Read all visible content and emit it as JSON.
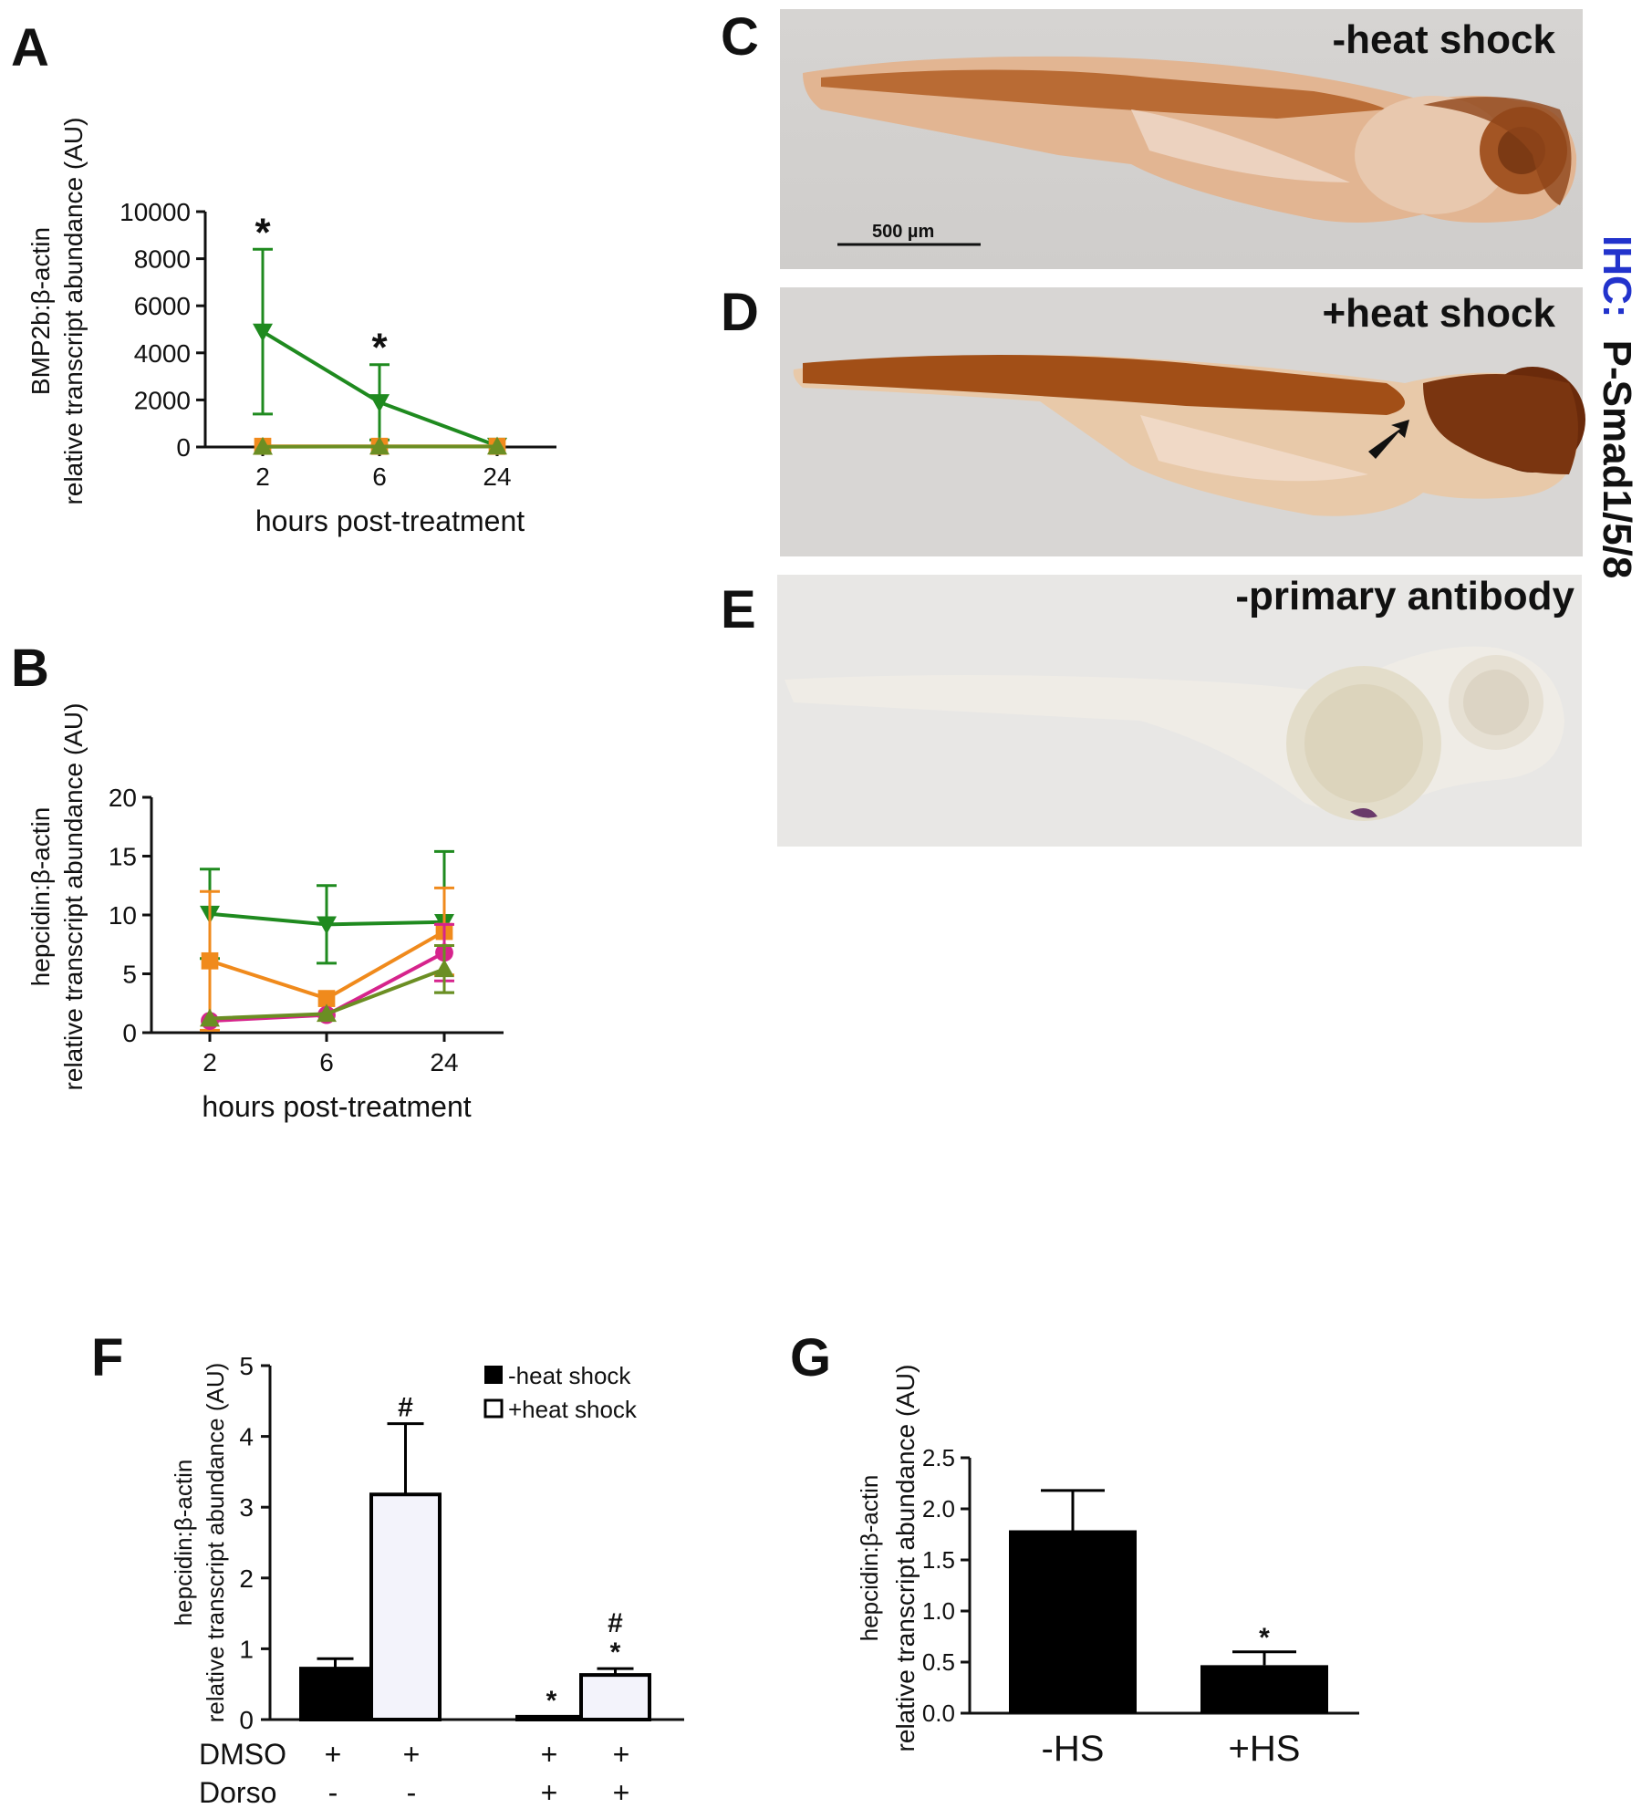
{
  "panels": {
    "A": "A",
    "B": "B",
    "C": "C",
    "D": "D",
    "E": "E",
    "F": "F",
    "G": "G"
  },
  "photos": {
    "C": {
      "label": "-heat shock",
      "scale_bar": "500 µm"
    },
    "D": {
      "label": "+heat shock"
    },
    "E": {
      "label": "-primary antibody"
    },
    "side_label_prefix": "IHC:",
    "side_label_main": "P-Smad1/5/8",
    "side_label_prefix_color": "#2233cc"
  },
  "colors": {
    "green": "#1f8a1f",
    "orange": "#f08a1c",
    "magenta": "#d6248c",
    "olive": "#6b8e23"
  },
  "chart_data": [
    {
      "id": "A",
      "type": "line",
      "x": [
        "2",
        "6",
        "24"
      ],
      "xlabel": "hours post-treatment",
      "ylabel_line1": "BMP2b:β-actin",
      "ylabel_line2": "relative transcript abundance (AU)",
      "ylim": [
        0,
        10000
      ],
      "yticks": [
        "0",
        "2000",
        "4000",
        "6000",
        "8000",
        "10000"
      ],
      "series": [
        {
          "color": "green",
          "marker": "triangle-down",
          "values": [
            4900,
            1900,
            50
          ],
          "err": [
            3500,
            1600,
            0
          ]
        },
        {
          "color": "orange",
          "marker": "square",
          "values": [
            30,
            30,
            30
          ],
          "err": [
            0,
            0,
            0
          ]
        },
        {
          "color": "olive",
          "marker": "triangle-up",
          "values": [
            10,
            20,
            20
          ],
          "err": [
            0,
            0,
            0
          ]
        }
      ],
      "annotations": [
        {
          "x_index": 0,
          "text": "*"
        },
        {
          "x_index": 1,
          "text": "*"
        }
      ]
    },
    {
      "id": "B",
      "type": "line",
      "x": [
        "2",
        "6",
        "24"
      ],
      "xlabel": "hours post-treatment",
      "ylabel_line1": "hepcidin:β-actin",
      "ylabel_line2": "relative transcript abundance (AU)",
      "ylim": [
        0,
        20
      ],
      "yticks": [
        "0",
        "5",
        "10",
        "15",
        "20"
      ],
      "series": [
        {
          "color": "green",
          "marker": "triangle-down",
          "values": [
            10.1,
            9.2,
            9.4
          ],
          "err": [
            3.8,
            3.3,
            6.0
          ]
        },
        {
          "color": "orange",
          "marker": "square",
          "values": [
            6.1,
            2.9,
            8.6
          ],
          "err": [
            5.9,
            0,
            3.7
          ]
        },
        {
          "color": "magenta",
          "marker": "circle",
          "values": [
            1.0,
            1.5,
            6.8
          ],
          "err": [
            0,
            0,
            2.4
          ]
        },
        {
          "color": "olive",
          "marker": "triangle-up",
          "values": [
            1.2,
            1.6,
            5.4
          ],
          "err": [
            0,
            0,
            2.0
          ]
        }
      ]
    },
    {
      "id": "F",
      "type": "bar",
      "ylabel_line1": "hepcidin:β-actin",
      "ylabel_line2": "relative transcript abundance (AU)",
      "ylim": [
        0,
        5
      ],
      "yticks": [
        "0",
        "1",
        "2",
        "3",
        "4",
        "5"
      ],
      "legend": [
        "-heat shock",
        "+heat shock"
      ],
      "bars": [
        {
          "value": 0.72,
          "err": 0.14,
          "fill": "solid",
          "label": ""
        },
        {
          "value": 3.18,
          "err": 1.0,
          "fill": "open",
          "label": "#"
        },
        {
          "value": 0.04,
          "err": 0.0,
          "fill": "solid",
          "label": "*"
        },
        {
          "value": 0.63,
          "err": 0.09,
          "fill": "open",
          "label": "*",
          "label2": "#"
        }
      ],
      "row_labels": [
        "DMSO",
        "Dorso"
      ],
      "rows": [
        [
          "+",
          "+",
          "+",
          "+"
        ],
        [
          "-",
          "-",
          "+",
          "+"
        ]
      ]
    },
    {
      "id": "G",
      "type": "bar",
      "ylabel_line1": "hepcidin:β-actin",
      "ylabel_line2": "relative transcript abundance (AU)",
      "ylim": [
        0,
        2.5
      ],
      "yticks": [
        "0.0",
        "0.5",
        "1.0",
        "1.5",
        "2.0",
        "2.5"
      ],
      "categories": [
        "-HS",
        "+HS"
      ],
      "values": [
        1.79,
        0.47
      ],
      "err": [
        0.39,
        0.13
      ],
      "labels": [
        "",
        "*"
      ]
    }
  ]
}
